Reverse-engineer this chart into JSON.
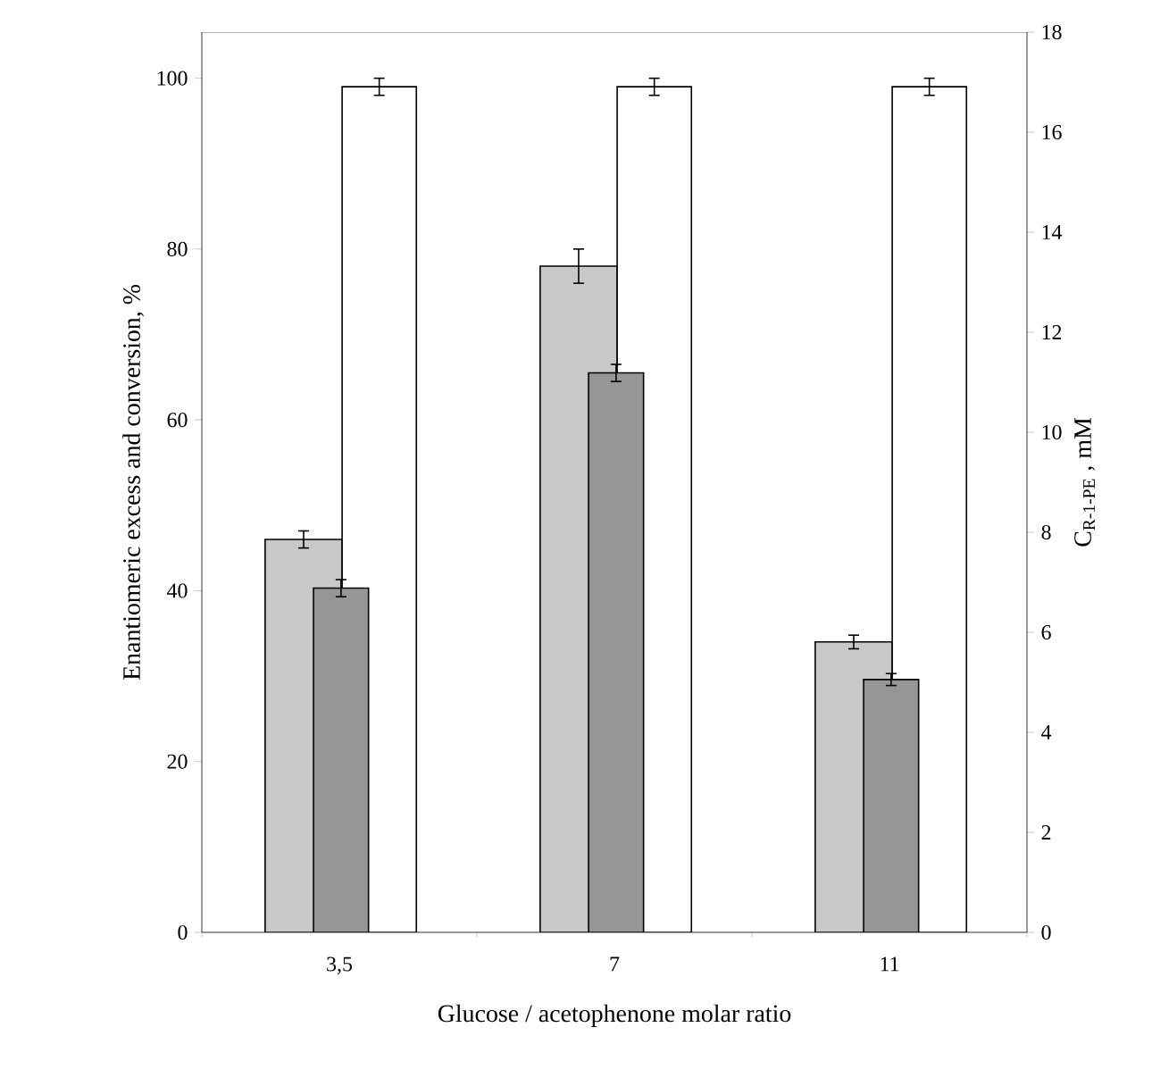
{
  "chart_data": {
    "type": "bar",
    "xlabel": "Glucose / acetophenone molar ratio",
    "ylabel": "Enantiomeric excess and conversion, %",
    "y2label": "C$_{R-1-PE}$ , mM",
    "categories": [
      "3,5",
      "7",
      "11"
    ],
    "series": [
      {
        "color": "#c8c8c8",
        "values": [
          46,
          78,
          34
        ],
        "errors": [
          1,
          2,
          0.8
        ]
      },
      {
        "color": "#969696",
        "values": [
          40.3,
          65.5,
          29.6
        ],
        "errors": [
          1,
          1,
          0.7
        ]
      },
      {
        "color": "#ffffff",
        "values": [
          99,
          99,
          99
        ],
        "errors": [
          1,
          1,
          1
        ]
      }
    ],
    "ylim": [
      0,
      105.4
    ],
    "yticks": [
      0,
      20,
      40,
      60,
      80,
      100
    ],
    "y2lim": [
      0,
      18
    ],
    "y2ticks": [
      0,
      2,
      4,
      6,
      8,
      10,
      12,
      14,
      16,
      18
    ]
  }
}
